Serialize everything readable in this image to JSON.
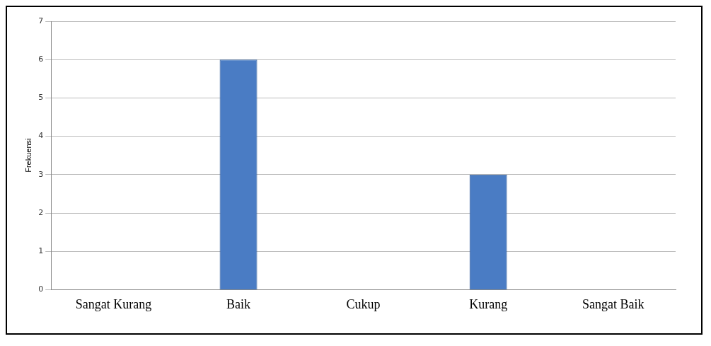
{
  "chart_data": {
    "type": "bar",
    "ylabel": "Frekuensi",
    "categories": [
      "Sangat Kurang",
      "Baik",
      "Cukup",
      "Kurang",
      "Sangat Baik"
    ],
    "values": [
      0,
      6,
      0,
      3,
      0
    ],
    "color": "#4a7cc4",
    "ylim": [
      0,
      7
    ],
    "yticks": [
      0,
      1,
      2,
      3,
      4,
      5,
      6,
      7
    ],
    "grid": "y"
  }
}
